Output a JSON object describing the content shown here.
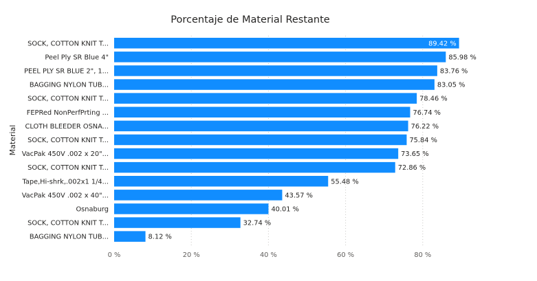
{
  "chart_data": {
    "type": "bar",
    "orientation": "horizontal",
    "title": "Porcentaje de Material Restante",
    "ylabel": "Material",
    "xlabel": "",
    "xlim": [
      0,
      92
    ],
    "xticks": [
      0,
      20,
      40,
      60,
      80
    ],
    "xtick_labels": [
      "0 %",
      "20 %",
      "40 %",
      "60 %",
      "80 %"
    ],
    "grid": true,
    "bar_color": "#118DFF",
    "categories": [
      "SOCK, COTTON KNIT T...",
      "Peel Ply SR Blue 4\"",
      "PEEL PLY SR BLUE 2\", 1...",
      "BAGGING NYLON TUB...",
      "SOCK, COTTON KNIT T...",
      "FEPRed NonPerfPrting ...",
      "CLOTH BLEEDER OSNA...",
      "SOCK, COTTON KNIT T...",
      "VacPak 450V .002 x 20\"...",
      "SOCK, COTTON KNIT T...",
      "Tape,Hi-shrk,.002x1 1/4...",
      "VacPak 450V .002 x 40\"...",
      "Osnaburg",
      "SOCK, COTTON KNIT T...",
      "BAGGING NYLON TUB..."
    ],
    "values": [
      89.42,
      85.98,
      83.76,
      83.05,
      78.46,
      76.74,
      76.22,
      75.84,
      73.65,
      72.86,
      55.48,
      43.57,
      40.01,
      32.74,
      8.12
    ],
    "value_labels": [
      "89.42 %",
      "85.98 %",
      "83.76 %",
      "83.05 %",
      "78.46 %",
      "76.74 %",
      "76.22 %",
      "75.84 %",
      "73.65 %",
      "72.86 %",
      "55.48 %",
      "43.57 %",
      "40.01 %",
      "32.74 %",
      "8.12 %"
    ]
  }
}
